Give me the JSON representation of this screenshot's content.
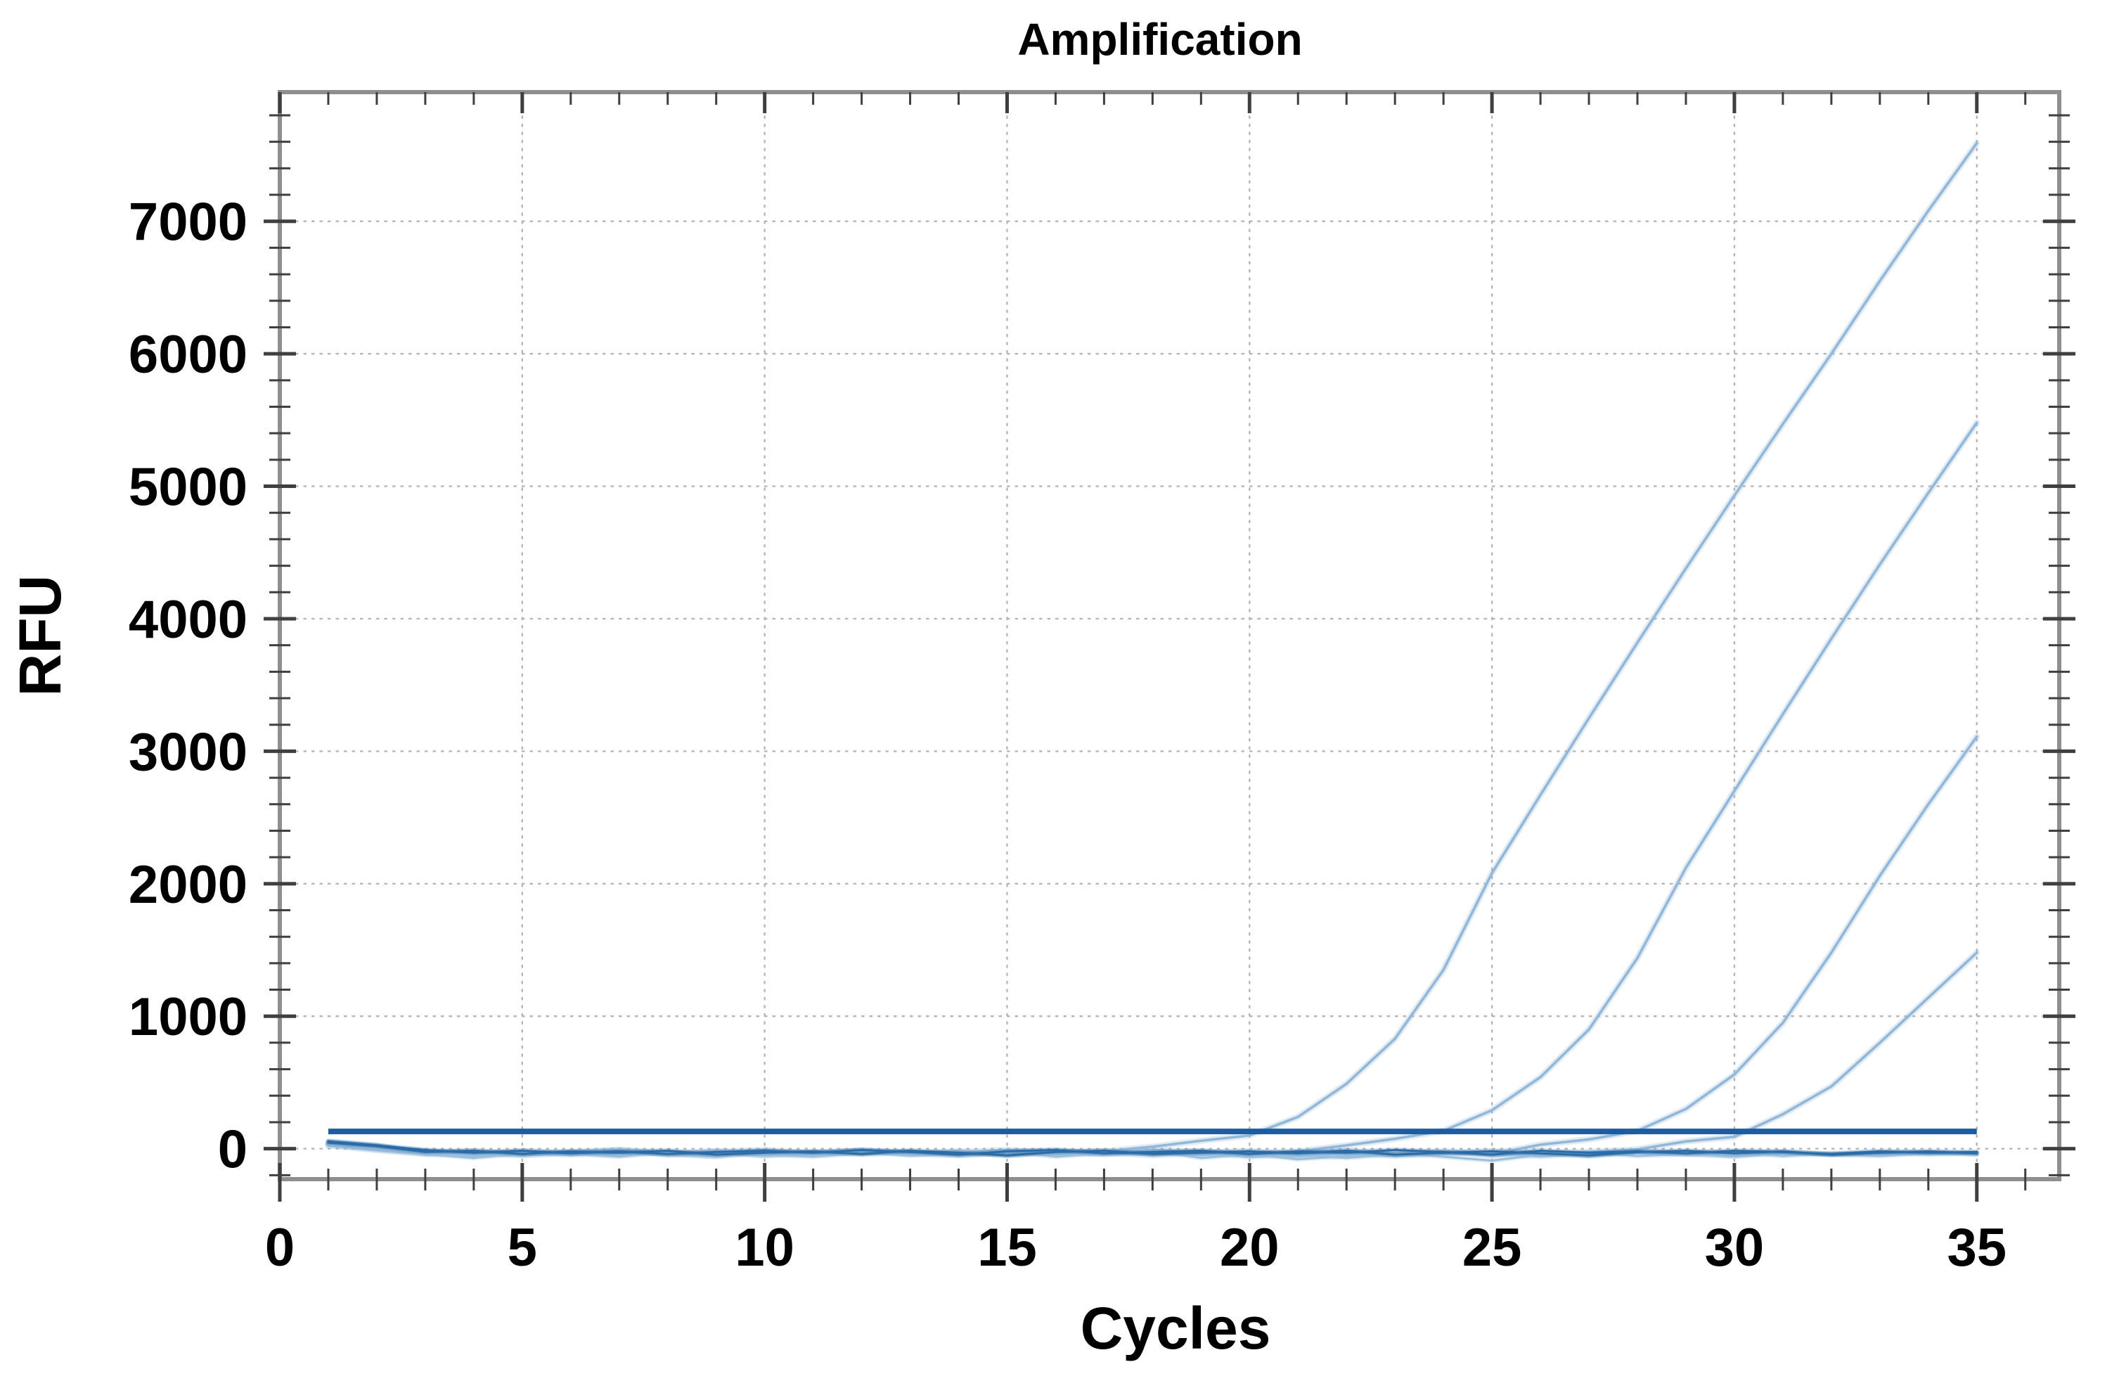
{
  "page": {
    "background": "#ffffff"
  },
  "chart_data": {
    "type": "line",
    "title": "Amplification",
    "xlabel": "Cycles",
    "ylabel": "RFU",
    "legend": "none",
    "grid": "dotted-at-major-ticks",
    "xlim": [
      0,
      36.7
    ],
    "ylim": [
      -230,
      7975
    ],
    "x_ticks_major": [
      0,
      5,
      10,
      15,
      20,
      25,
      30,
      35
    ],
    "x_minor_step": 1,
    "x_minor_min": 1,
    "x_minor_max": 36,
    "y_ticks_major": [
      0,
      1000,
      2000,
      3000,
      4000,
      5000,
      6000,
      7000
    ],
    "y_minor_step": 200,
    "y_minor_min": -200,
    "y_minor_max": 7800,
    "cycles": [
      1,
      2,
      3,
      4,
      5,
      6,
      7,
      8,
      9,
      10,
      11,
      12,
      13,
      14,
      15,
      16,
      17,
      18,
      19,
      20,
      21,
      22,
      23,
      24,
      25,
      26,
      27,
      28,
      29,
      30,
      31,
      32,
      33,
      34,
      35
    ],
    "threshold": {
      "value": 130,
      "x_start": 1,
      "x_end": 35,
      "color": "#1d5c9e"
    },
    "series": [
      {
        "name": "amplification-curve-1",
        "role": "amplification",
        "ct": 20.3,
        "end_rfu": 7590,
        "color": "#92b7d8",
        "values": [
          40,
          10,
          -20,
          -40,
          -25,
          -35,
          -10,
          -30,
          -45,
          -20,
          -35,
          -15,
          -40,
          -25,
          -10,
          -30,
          -20,
          15,
          60,
          100,
          240,
          490,
          830,
          1350,
          2080,
          2670,
          3250,
          3820,
          4380,
          4930,
          5470,
          6000,
          6550,
          7080,
          7590
        ]
      },
      {
        "name": "amplification-curve-2",
        "role": "amplification",
        "ct": 24.0,
        "end_rfu": 5480,
        "color": "#92b7d8",
        "values": [
          30,
          -5,
          -35,
          -20,
          -45,
          -25,
          -10,
          -40,
          -20,
          -50,
          -30,
          -15,
          -40,
          -25,
          -45,
          -20,
          -35,
          -10,
          -30,
          -45,
          -20,
          25,
          75,
          135,
          290,
          540,
          900,
          1440,
          2120,
          2700,
          3280,
          3850,
          4410,
          4950,
          5480
        ]
      },
      {
        "name": "amplification-curve-3",
        "role": "amplification",
        "ct": 27.9,
        "end_rfu": 3110,
        "color": "#92b7d8",
        "values": [
          35,
          5,
          -30,
          -45,
          -20,
          -35,
          -15,
          -45,
          -25,
          -10,
          -40,
          -20,
          -35,
          -50,
          -25,
          -15,
          -40,
          -30,
          -20,
          -45,
          -30,
          -15,
          -35,
          -20,
          -40,
          30,
          70,
          135,
          300,
          560,
          950,
          1480,
          2060,
          2600,
          3110
        ]
      },
      {
        "name": "amplification-curve-4",
        "role": "amplification",
        "ct": 30.3,
        "end_rfu": 1480,
        "color": "#92b7d8",
        "values": [
          25,
          -10,
          -40,
          -25,
          -50,
          -30,
          -15,
          -35,
          -55,
          -25,
          -40,
          -15,
          -30,
          -45,
          -20,
          -40,
          -25,
          -50,
          -30,
          -20,
          -45,
          -30,
          -55,
          -35,
          -20,
          -40,
          -25,
          -5,
          55,
          90,
          260,
          470,
          800,
          1140,
          1480
        ]
      },
      {
        "name": "baseline-trace-1",
        "role": "baseline-noise",
        "color": "#9cc0dc",
        "values": [
          60,
          30,
          -40,
          -70,
          -30,
          -50,
          -20,
          -45,
          -60,
          -25,
          -40,
          -15,
          -50,
          -30,
          -20,
          -60,
          -35,
          -15,
          -70,
          -40,
          -80,
          -55,
          -30,
          -60,
          -90,
          -45,
          -30,
          -55,
          -40,
          -60,
          -35,
          -50,
          -45,
          -30,
          -40
        ]
      },
      {
        "name": "baseline-trace-2",
        "role": "baseline-noise",
        "color": "#9cc0dc",
        "values": [
          45,
          15,
          -25,
          -55,
          -45,
          -20,
          -50,
          -30,
          -15,
          -45,
          -60,
          -35,
          -20,
          -50,
          -40,
          -25,
          -15,
          -45,
          -30,
          -65,
          -45,
          -70,
          -40,
          -20,
          -55,
          -35,
          -60,
          -30,
          -45,
          -25,
          -55,
          -35,
          -25,
          -45,
          -30
        ]
      },
      {
        "name": "baseline-trace-3",
        "role": "baseline-noise",
        "color": "#9cc0dc",
        "values": [
          50,
          20,
          -35,
          -60,
          -25,
          -40,
          -60,
          -25,
          -35,
          -55,
          -25,
          -45,
          -35,
          -15,
          -55,
          -35,
          -45,
          -25,
          -50,
          -30,
          -60,
          -35,
          -50,
          -40,
          -30,
          -60,
          -40,
          -25,
          -45,
          -55,
          -30,
          -40,
          -55,
          -35,
          -45
        ]
      },
      {
        "name": "ntc-trace-1",
        "role": "ntc-noise",
        "color": "#2b6ca8",
        "values": [
          55,
          25,
          -10,
          -30,
          -15,
          -35,
          -20,
          -40,
          -25,
          -15,
          -30,
          -10,
          -25,
          -45,
          -20,
          -10,
          -35,
          -25,
          -15,
          -40,
          -20,
          -30,
          -10,
          -25,
          -45,
          -15,
          -30,
          -20,
          -35,
          -15,
          -25,
          -40,
          -20,
          -30,
          -25
        ]
      },
      {
        "name": "ntc-trace-2",
        "role": "ntc-noise",
        "color": "#2b6ca8",
        "values": [
          45,
          20,
          -25,
          -15,
          -40,
          -20,
          -30,
          -15,
          -45,
          -30,
          -20,
          -40,
          -15,
          -30,
          -50,
          -25,
          -15,
          -40,
          -30,
          -20,
          -35,
          -15,
          -45,
          -30,
          -20,
          -35,
          -50,
          -25,
          -15,
          -35,
          -20,
          -45,
          -30,
          -20,
          -35
        ]
      }
    ],
    "colors": {
      "amplification": "#92b7d8",
      "threshold": "#1d5c9e",
      "ntc": "#2b6ca8",
      "baseline": "#9cc0dc",
      "spine": "#8f8f8f",
      "tick": "#3f3f3f",
      "grid": "#b5b5b5",
      "text": "#000000"
    }
  }
}
